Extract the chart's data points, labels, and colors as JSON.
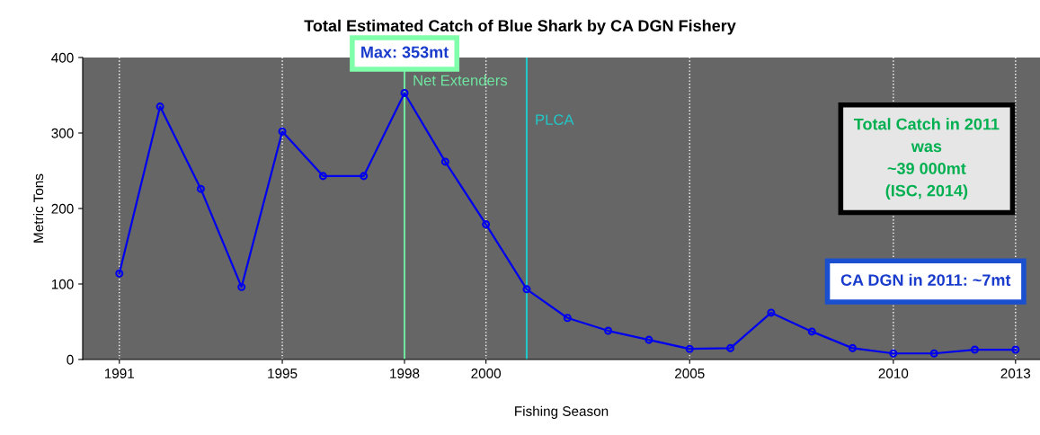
{
  "chart_data": {
    "type": "line",
    "title": "Total Estimated Catch of Blue Shark by CA DGN Fishery",
    "xlabel": "Fishing Season",
    "ylabel": "Metric Tons",
    "x": [
      1991,
      1992,
      1993,
      1994,
      1995,
      1996,
      1997,
      1998,
      1999,
      2000,
      2001,
      2002,
      2003,
      2004,
      2005,
      2006,
      2007,
      2008,
      2009,
      2010,
      2011,
      2012,
      2013
    ],
    "series": [
      {
        "color": "#0000ee",
        "values": [
          114,
          335,
          226,
          96,
          302,
          243,
          243,
          353,
          262,
          179,
          93,
          55,
          38,
          26,
          14,
          15,
          62,
          37,
          15,
          8,
          8,
          13,
          13
        ]
      }
    ],
    "marker": "circle",
    "line_style": "solid",
    "grid": "x",
    "xlim": [
      1990.1,
      2013.6
    ],
    "xticks": [
      1991,
      1995,
      1998,
      2000,
      2005,
      2010,
      2013
    ],
    "ylim": [
      0,
      400
    ],
    "yticks": [
      0,
      100,
      200,
      300,
      400
    ],
    "ref_lines": [
      {
        "axis": "x",
        "value": 1998,
        "label": "Net Extenders",
        "color": "#6ee6a0"
      },
      {
        "axis": "x",
        "value": 2001,
        "label": "PLCA",
        "color": "#20c8c8"
      }
    ],
    "annotations": [
      "Max: 353mt",
      "Total Catch in 2011\nwas\n~39 000mt\n(ISC, 2014)",
      "CA DGN in 2011: ~7mt"
    ]
  }
}
